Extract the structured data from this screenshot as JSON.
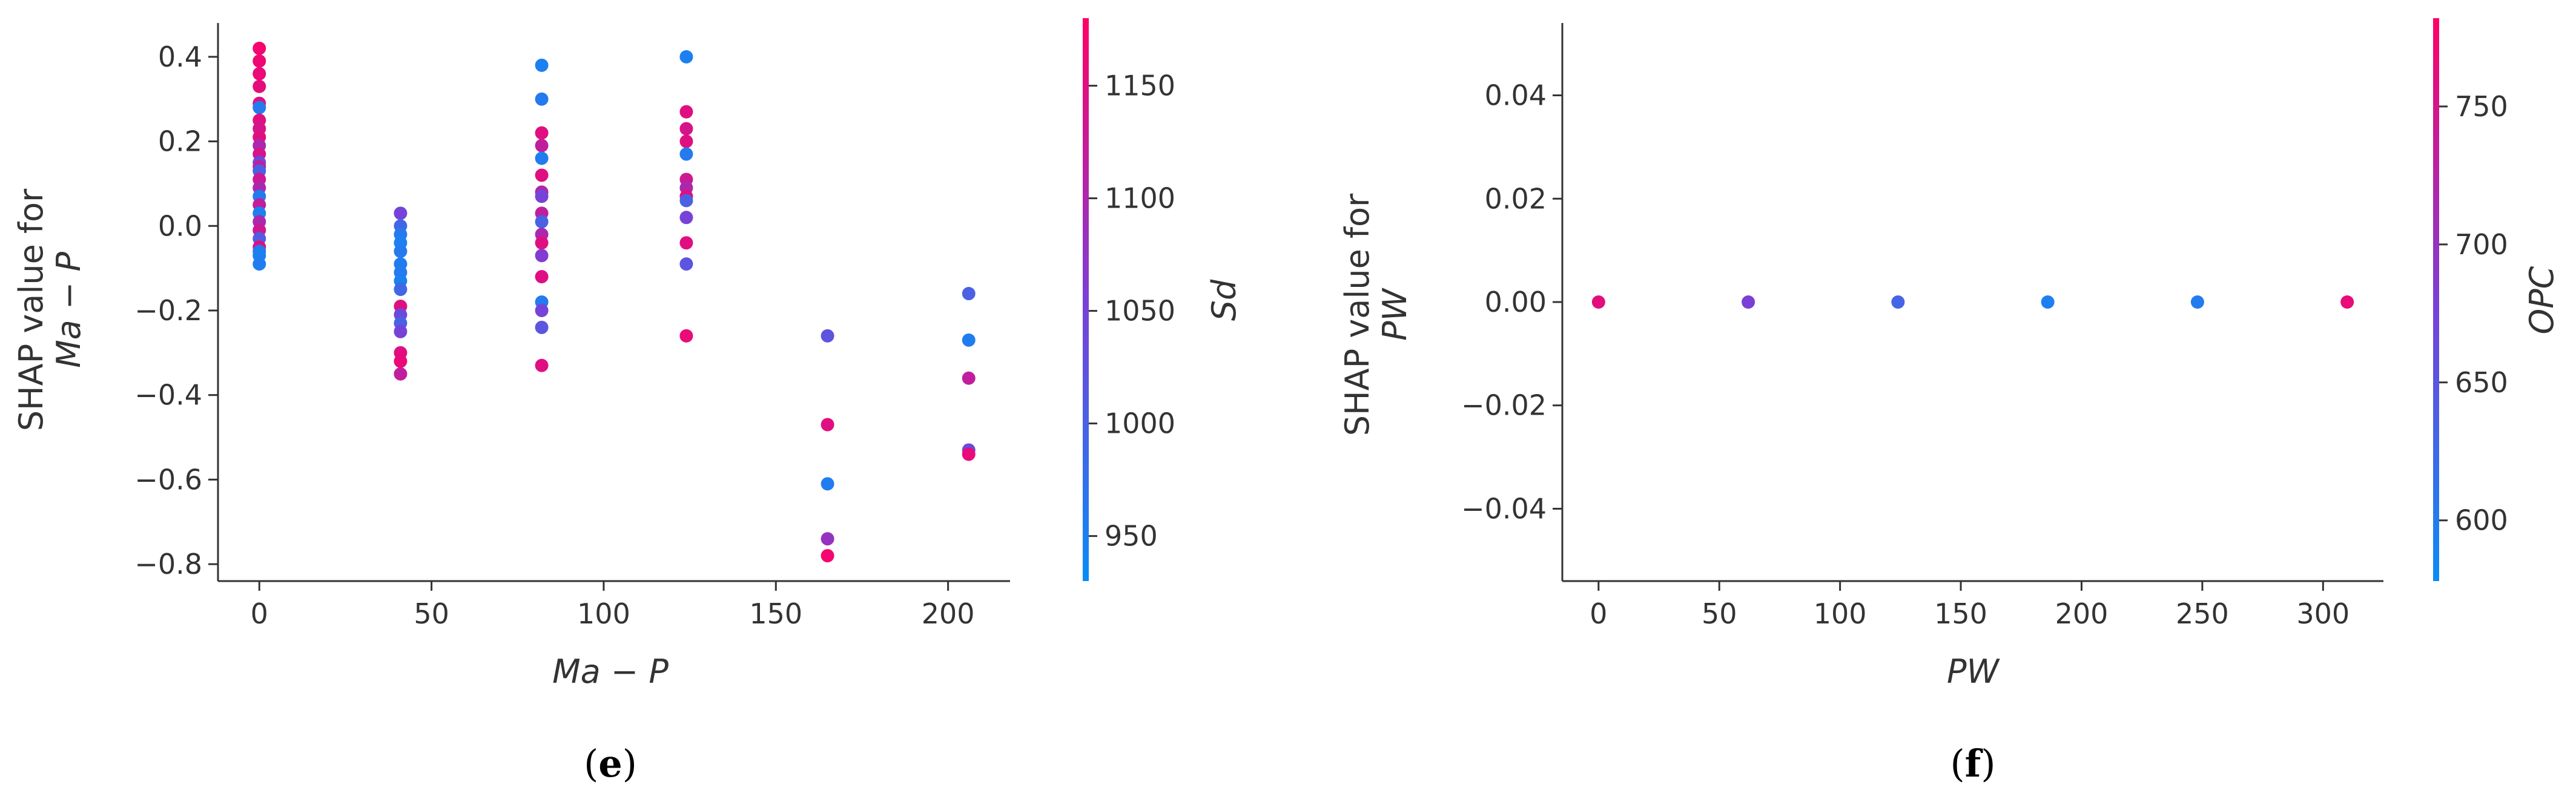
{
  "chart_data": [
    {
      "type": "scatter",
      "panel_label": "e",
      "xlabel": "Ma − P",
      "ylabel_line1": "SHAP value for",
      "ylabel_line2": "Ma − P",
      "xlim": [
        -12,
        218
      ],
      "ylim": [
        -0.84,
        0.48
      ],
      "xticks": [
        0,
        50,
        100,
        150,
        200
      ],
      "yticks": [
        0.4,
        0.2,
        0.0,
        -0.2,
        -0.4,
        -0.6,
        -0.8
      ],
      "ytick_labels": [
        "0.4",
        "0.2",
        "0.0",
        "−0.2",
        "−0.4",
        "−0.6",
        "−0.8"
      ],
      "colorbar": {
        "label": "Sd",
        "range": [
          930,
          1180
        ],
        "ticks": [
          950,
          1000,
          1050,
          1100,
          1150
        ],
        "low_color": "#0a8cf5",
        "mid_color": "#7c3fd6",
        "high_color": "#ff0066"
      },
      "points": [
        {
          "x": 0,
          "y": 0.42,
          "c": 1170
        },
        {
          "x": 0,
          "y": 0.39,
          "c": 1165
        },
        {
          "x": 0,
          "y": 0.36,
          "c": 1160
        },
        {
          "x": 0,
          "y": 0.33,
          "c": 1155
        },
        {
          "x": 0,
          "y": 0.29,
          "c": 1150
        },
        {
          "x": 0,
          "y": 0.28,
          "c": 960
        },
        {
          "x": 0,
          "y": 0.25,
          "c": 1150
        },
        {
          "x": 0,
          "y": 0.23,
          "c": 1140
        },
        {
          "x": 0,
          "y": 0.21,
          "c": 1150
        },
        {
          "x": 0,
          "y": 0.19,
          "c": 1100
        },
        {
          "x": 0,
          "y": 0.17,
          "c": 1140
        },
        {
          "x": 0,
          "y": 0.15,
          "c": 1040
        },
        {
          "x": 0,
          "y": 0.14,
          "c": 1120
        },
        {
          "x": 0,
          "y": 0.13,
          "c": 1000
        },
        {
          "x": 0,
          "y": 0.11,
          "c": 1130
        },
        {
          "x": 0,
          "y": 0.09,
          "c": 1100
        },
        {
          "x": 0,
          "y": 0.07,
          "c": 960
        },
        {
          "x": 0,
          "y": 0.05,
          "c": 1120
        },
        {
          "x": 0,
          "y": 0.03,
          "c": 950
        },
        {
          "x": 0,
          "y": 0.01,
          "c": 1100
        },
        {
          "x": 0,
          "y": -0.01,
          "c": 1130
        },
        {
          "x": 0,
          "y": -0.03,
          "c": 1010
        },
        {
          "x": 0,
          "y": -0.05,
          "c": 1150
        },
        {
          "x": 0,
          "y": -0.06,
          "c": 960
        },
        {
          "x": 0,
          "y": -0.07,
          "c": 950
        },
        {
          "x": 0,
          "y": -0.09,
          "c": 955
        },
        {
          "x": 41,
          "y": 0.03,
          "c": 1050
        },
        {
          "x": 41,
          "y": 0.0,
          "c": 990
        },
        {
          "x": 41,
          "y": -0.02,
          "c": 960
        },
        {
          "x": 41,
          "y": -0.04,
          "c": 950
        },
        {
          "x": 41,
          "y": -0.06,
          "c": 960
        },
        {
          "x": 41,
          "y": -0.09,
          "c": 955
        },
        {
          "x": 41,
          "y": -0.11,
          "c": 960
        },
        {
          "x": 41,
          "y": -0.13,
          "c": 950
        },
        {
          "x": 41,
          "y": -0.15,
          "c": 990
        },
        {
          "x": 41,
          "y": -0.19,
          "c": 1150
        },
        {
          "x": 41,
          "y": -0.21,
          "c": 1040
        },
        {
          "x": 41,
          "y": -0.23,
          "c": 1000
        },
        {
          "x": 41,
          "y": -0.25,
          "c": 1050
        },
        {
          "x": 41,
          "y": -0.3,
          "c": 1150
        },
        {
          "x": 41,
          "y": -0.32,
          "c": 1160
        },
        {
          "x": 41,
          "y": -0.35,
          "c": 1120
        },
        {
          "x": 82,
          "y": 0.38,
          "c": 950
        },
        {
          "x": 82,
          "y": 0.3,
          "c": 960
        },
        {
          "x": 82,
          "y": 0.22,
          "c": 1150
        },
        {
          "x": 82,
          "y": 0.19,
          "c": 1120
        },
        {
          "x": 82,
          "y": 0.16,
          "c": 955
        },
        {
          "x": 82,
          "y": 0.12,
          "c": 1150
        },
        {
          "x": 82,
          "y": 0.08,
          "c": 1100
        },
        {
          "x": 82,
          "y": 0.07,
          "c": 1050
        },
        {
          "x": 82,
          "y": 0.03,
          "c": 1120
        },
        {
          "x": 82,
          "y": 0.01,
          "c": 1000
        },
        {
          "x": 82,
          "y": -0.02,
          "c": 1100
        },
        {
          "x": 82,
          "y": -0.04,
          "c": 1150
        },
        {
          "x": 82,
          "y": -0.07,
          "c": 1060
        },
        {
          "x": 82,
          "y": -0.12,
          "c": 1150
        },
        {
          "x": 82,
          "y": -0.18,
          "c": 960
        },
        {
          "x": 82,
          "y": -0.2,
          "c": 1050
        },
        {
          "x": 82,
          "y": -0.24,
          "c": 1020
        },
        {
          "x": 82,
          "y": -0.33,
          "c": 1150
        },
        {
          "x": 124,
          "y": 0.4,
          "c": 950
        },
        {
          "x": 124,
          "y": 0.27,
          "c": 1150
        },
        {
          "x": 124,
          "y": 0.23,
          "c": 1140
        },
        {
          "x": 124,
          "y": 0.2,
          "c": 1150
        },
        {
          "x": 124,
          "y": 0.17,
          "c": 960
        },
        {
          "x": 124,
          "y": 0.11,
          "c": 1130
        },
        {
          "x": 124,
          "y": 0.09,
          "c": 1100
        },
        {
          "x": 124,
          "y": 0.07,
          "c": 1150
        },
        {
          "x": 124,
          "y": 0.06,
          "c": 1000
        },
        {
          "x": 124,
          "y": 0.02,
          "c": 1050
        },
        {
          "x": 124,
          "y": -0.04,
          "c": 1150
        },
        {
          "x": 124,
          "y": -0.09,
          "c": 1020
        },
        {
          "x": 124,
          "y": -0.26,
          "c": 1160
        },
        {
          "x": 165,
          "y": -0.26,
          "c": 1020
        },
        {
          "x": 165,
          "y": -0.47,
          "c": 1150
        },
        {
          "x": 165,
          "y": -0.61,
          "c": 955
        },
        {
          "x": 165,
          "y": -0.74,
          "c": 1080
        },
        {
          "x": 165,
          "y": -0.78,
          "c": 1170
        },
        {
          "x": 206,
          "y": -0.16,
          "c": 1000
        },
        {
          "x": 206,
          "y": -0.27,
          "c": 955
        },
        {
          "x": 206,
          "y": -0.36,
          "c": 1120
        },
        {
          "x": 206,
          "y": -0.53,
          "c": 1040
        },
        {
          "x": 206,
          "y": -0.54,
          "c": 1160
        }
      ]
    },
    {
      "type": "scatter",
      "panel_label": "f",
      "xlabel": "PW",
      "ylabel_line1": "SHAP value for",
      "ylabel_line2": "PW",
      "xlim": [
        -15,
        325
      ],
      "ylim": [
        -0.054,
        0.054
      ],
      "xticks": [
        0,
        50,
        100,
        150,
        200,
        250,
        300
      ],
      "yticks": [
        0.04,
        0.02,
        0.0,
        -0.02,
        -0.04
      ],
      "ytick_labels": [
        "0.04",
        "0.02",
        "0.00",
        "−0.02",
        "−0.04"
      ],
      "colorbar": {
        "label": "OPC",
        "range": [
          578,
          782
        ],
        "ticks": [
          600,
          650,
          700,
          750
        ],
        "low_color": "#0a8cf5",
        "mid_color": "#7c3fd6",
        "high_color": "#ff0066"
      },
      "points": [
        {
          "x": 0,
          "y": 0.0,
          "c": 760
        },
        {
          "x": 62,
          "y": 0.0,
          "c": 680
        },
        {
          "x": 124,
          "y": 0.0,
          "c": 630
        },
        {
          "x": 186,
          "y": 0.0,
          "c": 595
        },
        {
          "x": 248,
          "y": 0.0,
          "c": 600
        },
        {
          "x": 310,
          "y": 0.0,
          "c": 765
        }
      ]
    }
  ]
}
